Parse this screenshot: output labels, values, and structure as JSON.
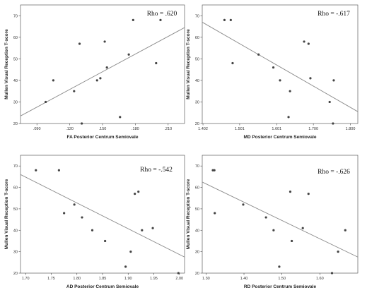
{
  "chart_data": [
    {
      "type": "scatter",
      "annotation": "Rho = .620",
      "xlabel": "FA Posterior Centrum Semiovale",
      "ylabel": "Mullen Visual Reception T-score",
      "xlim": [
        0.075,
        0.225
      ],
      "ylim": [
        20,
        75
      ],
      "xticks": [
        ".090",
        ".120",
        ".150",
        ".180",
        ".210"
      ],
      "xtick_values": [
        0.09,
        0.12,
        0.15,
        0.18,
        0.21
      ],
      "yticks": [
        "20",
        "30",
        "40",
        "50",
        "60",
        "70"
      ],
      "ytick_values": [
        20,
        30,
        40,
        50,
        60,
        70
      ],
      "x": [
        0.098,
        0.105,
        0.124,
        0.129,
        0.131,
        0.145,
        0.148,
        0.152,
        0.154,
        0.166,
        0.174,
        0.178,
        0.199,
        0.203
      ],
      "y": [
        30,
        40,
        35,
        57,
        20,
        40,
        41,
        58,
        46,
        23,
        52,
        68,
        48,
        68
      ],
      "fit_line": {
        "x": [
          0.075,
          0.225
        ],
        "y": [
          23.5,
          64.5
        ]
      }
    },
    {
      "type": "scatter",
      "annotation": "Rho = -.617",
      "xlabel": "MD Posterior Centrum Semiovale",
      "ylabel": "Mullen Visual Reception T-score",
      "xlim": [
        1.4,
        1.82
      ],
      "ylim": [
        20,
        75
      ],
      "xticks": [
        "1.402",
        "1.501",
        "1.601",
        "1.700",
        "1.800"
      ],
      "xtick_values": [
        1.402,
        1.501,
        1.601,
        1.7,
        1.8
      ],
      "yticks": [
        "20",
        "30",
        "40",
        "50",
        "60",
        "70"
      ],
      "ytick_values": [
        20,
        30,
        40,
        50,
        60,
        70
      ],
      "x": [
        1.46,
        1.477,
        1.482,
        1.552,
        1.592,
        1.61,
        1.633,
        1.637,
        1.675,
        1.687,
        1.692,
        1.744,
        1.755,
        1.753
      ],
      "y": [
        68,
        68,
        48,
        52,
        46,
        40,
        23,
        35,
        58,
        57,
        41,
        30,
        40,
        20
      ],
      "fit_line": {
        "x": [
          1.4,
          1.82
        ],
        "y": [
          67.0,
          25.5
        ]
      }
    },
    {
      "type": "scatter",
      "annotation": "Rho = -.542",
      "xlabel": "AD Posterior Centrum Semiovale",
      "ylabel": "Mullen Visual Reception T-score",
      "xlim": [
        1.69,
        2.01
      ],
      "ylim": [
        20,
        75
      ],
      "xticks": [
        "1.70",
        "1.75",
        "1.80",
        "1.85",
        "1.90",
        "1.95",
        "2.00"
      ],
      "xtick_values": [
        1.7,
        1.75,
        1.8,
        1.85,
        1.9,
        1.95,
        2.0
      ],
      "yticks": [
        "20",
        "30",
        "40",
        "50",
        "60",
        "70"
      ],
      "ytick_values": [
        20,
        30,
        40,
        50,
        60,
        70
      ],
      "x": [
        1.72,
        1.765,
        1.775,
        1.795,
        1.81,
        1.83,
        1.855,
        1.895,
        1.905,
        1.913,
        1.92,
        1.927,
        1.948,
        1.998
      ],
      "y": [
        68,
        68,
        48,
        52,
        46,
        40,
        35,
        23,
        30,
        57,
        58,
        40,
        41,
        20
      ],
      "fit_line": {
        "x": [
          1.69,
          2.01
        ],
        "y": [
          66.0,
          27.5
        ]
      }
    },
    {
      "type": "scatter",
      "annotation": "Rho = -.626",
      "xlabel": "RD Posterior Centrum Semiovale",
      "ylabel": "Mullen Visual Reception T-score",
      "xlim": [
        1.29,
        1.7
      ],
      "ylim": [
        20,
        75
      ],
      "xticks": [
        "1.30",
        "1.40",
        "1.50",
        "1.60"
      ],
      "xtick_values": [
        1.3,
        1.4,
        1.5,
        1.6
      ],
      "yticks": [
        "20",
        "30",
        "40",
        "50",
        "60",
        "70"
      ],
      "ytick_values": [
        20,
        30,
        40,
        50,
        60,
        70
      ],
      "x": [
        1.318,
        1.322,
        1.323,
        1.398,
        1.458,
        1.478,
        1.493,
        1.522,
        1.526,
        1.555,
        1.57,
        1.632,
        1.648,
        1.667
      ],
      "y": [
        68,
        68,
        48,
        52,
        46,
        40,
        23,
        58,
        35,
        41,
        57,
        20,
        30,
        40
      ],
      "fit_line": {
        "x": [
          1.29,
          1.7
        ],
        "y": [
          62.5,
          27.5
        ]
      }
    }
  ]
}
